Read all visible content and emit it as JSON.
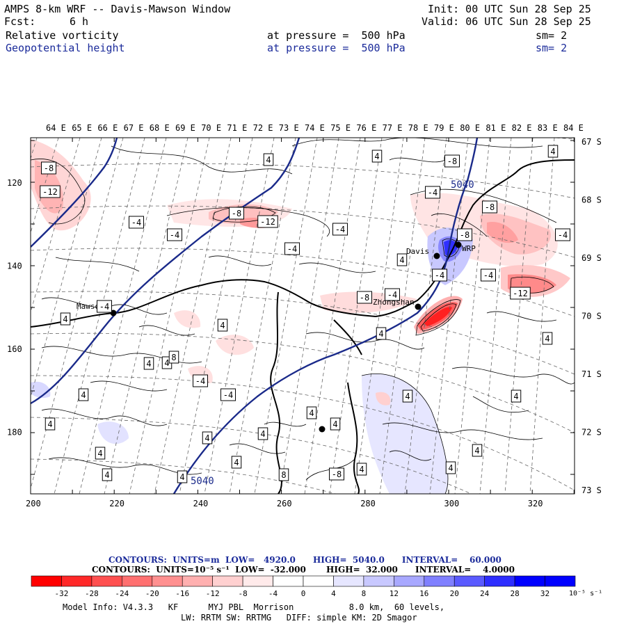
{
  "header": {
    "title": "AMPS 8-km WRF -- Davis-Mawson Window",
    "fcst_label": "Fcst:",
    "fcst_value": "6 h",
    "init": "Init: 00 UTC Sun 28 Sep 25",
    "valid": "Valid: 06 UTC Sun 28 Sep 25",
    "field1": {
      "name": "Relative vorticity",
      "level": "at pressure =  500 hPa",
      "sm": "sm= 2"
    },
    "field2": {
      "name": "Geopotential height",
      "level": "at pressure =  500 hPa",
      "sm": "sm= 2"
    }
  },
  "map": {
    "lon_labels": [
      "64 E",
      "65 E",
      "66 E",
      "67 E",
      "68 E",
      "69 E",
      "70 E",
      "71 E",
      "72 E",
      "73 E",
      "74 E",
      "75 E",
      "76 E",
      "77 E",
      "78 E",
      "79 E",
      "80 E",
      "81 E",
      "82 E",
      "83 E",
      "84 E"
    ],
    "lat_labels": [
      "67 S",
      "68 S",
      "69 S",
      "70 S",
      "71 S",
      "72 S",
      "73 S"
    ],
    "x_ticks": [
      "200",
      "220",
      "240",
      "260",
      "280",
      "300",
      "320"
    ],
    "y_ticks": [
      "120",
      "140",
      "160",
      "180"
    ],
    "stations": [
      "Davis",
      "Mawson",
      "Zhongshan",
      "WRP"
    ],
    "height_labels": [
      "5040",
      "5040"
    ],
    "vort_labels": [
      "-8",
      "-12",
      "-4",
      "-4",
      "-8",
      "-12",
      "-4",
      "-4",
      "4",
      "4",
      "-4",
      "-8",
      "-8",
      "-4",
      "-8",
      "-4",
      "4",
      "-4",
      "-12",
      "4",
      "-8",
      "-4",
      "-4",
      "4",
      "4",
      "4",
      "4",
      "4",
      "4",
      "8",
      "-4",
      "-4",
      "4",
      "4",
      "4",
      "4",
      "4",
      "4",
      "4",
      "4",
      "4",
      "4",
      "4",
      "4",
      "8",
      "-8",
      "4",
      "4",
      "4"
    ]
  },
  "legend": {
    "contours1": "CONTOURS:  UNITS=m  LOW=   4920.0      HIGH=  5040.0      INTERVAL=    60.000",
    "contours2": "CONTOURS:  UNITS=10⁻⁵ s⁻¹  LOW=  -32.000       HIGH=  32.000      INTERVAL=    4.0000",
    "colors": [
      "#ff0000",
      "#ff2828",
      "#ff5050",
      "#ff7070",
      "#ff9090",
      "#ffb0b0",
      "#ffd0d0",
      "#ffeaea",
      "#ffffff",
      "#ffffff",
      "#e6e6ff",
      "#c8c8ff",
      "#a8a8ff",
      "#8080ff",
      "#5a5aff",
      "#2e2eff",
      "#0000ff"
    ],
    "tick_labels": [
      "-32",
      "-28",
      "-24",
      "-20",
      "-16",
      "-12",
      "-8",
      "-4",
      "0",
      "4",
      "8",
      "12",
      "16",
      "20",
      "24",
      "28",
      "32"
    ],
    "unit": "10⁻⁵ s⁻¹"
  },
  "footer": {
    "line1": "Model Info: V4.3.3   KF      MYJ PBL  Morrison           8.0 km,  60 levels,",
    "line2": "LW: RRTM SW: RRTMG   DIFF: simple KM: 2D Smagor"
  }
}
